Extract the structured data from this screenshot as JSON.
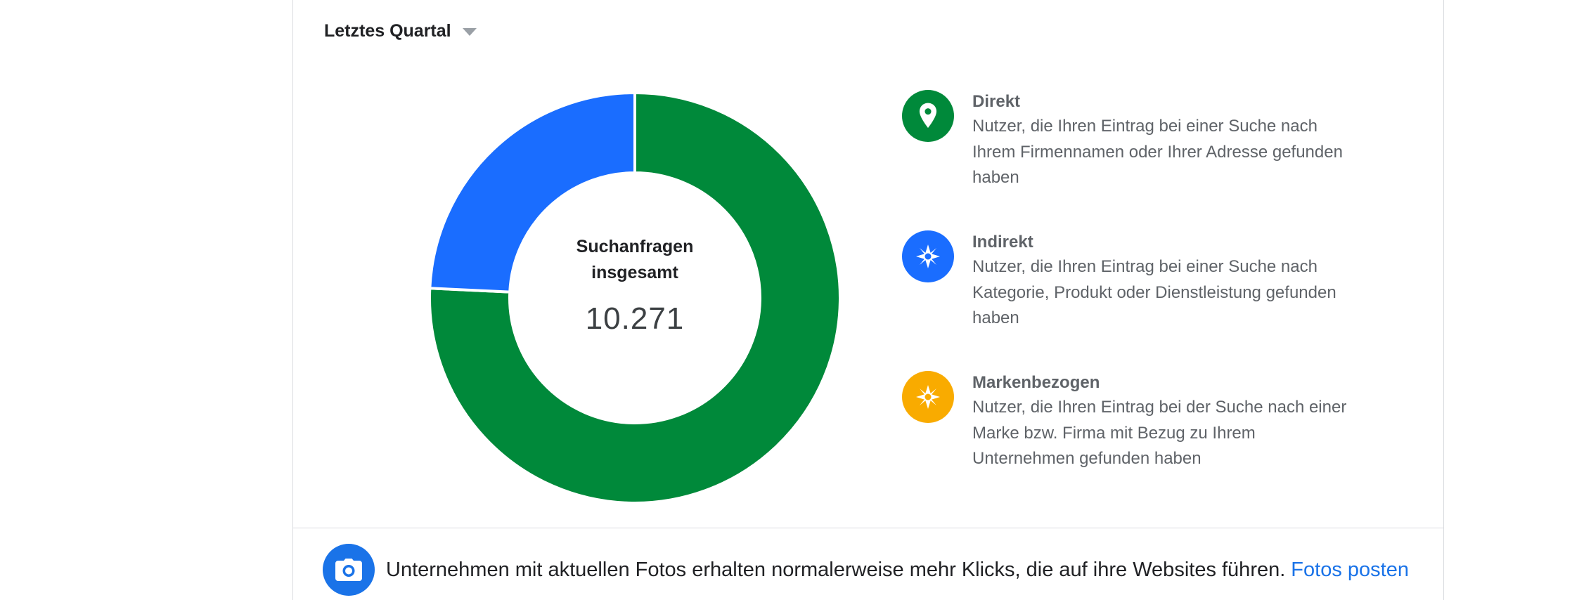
{
  "period_selector": {
    "label": "Letztes Quartal"
  },
  "chart_data": {
    "type": "pie",
    "title": "",
    "center_label": "Suchanfragen insgesamt",
    "center_value": "10.271",
    "total": 10271,
    "categories": [
      "Direkt",
      "Indirekt",
      "Markenbezogen"
    ],
    "values": [
      0.7575,
      0.2425,
      0.0
    ],
    "colors": [
      "#00893a",
      "#1a6dff",
      "#f9ab00"
    ],
    "donut": true
  },
  "legend": {
    "items": [
      {
        "title": "Direkt",
        "description": "Nutzer, die Ihren Eintrag bei einer Suche nach Ihrem Firmennamen oder Ihrer Adresse gefunden haben",
        "color": "#00893a",
        "icon": "location-pin-icon"
      },
      {
        "title": "Indirekt",
        "description": "Nutzer, die Ihren Eintrag bei einer Suche nach Kategorie, Produkt oder Dienstleistung gefunden haben",
        "color": "#1a6dff",
        "icon": "compass-icon"
      },
      {
        "title": "Markenbezogen",
        "description": "Nutzer, die Ihren Eintrag bei der Suche nach einer Marke bzw. Firma mit Bezug zu Ihrem Unternehmen gefunden haben",
        "color": "#f9ab00",
        "icon": "compass-icon"
      }
    ]
  },
  "tip": {
    "icon": "camera-icon",
    "text": "Unternehmen mit aktuellen Fotos erhalten normalerweise mehr Klicks, die auf ihre Websites führen.",
    "link_label": "Fotos posten"
  }
}
